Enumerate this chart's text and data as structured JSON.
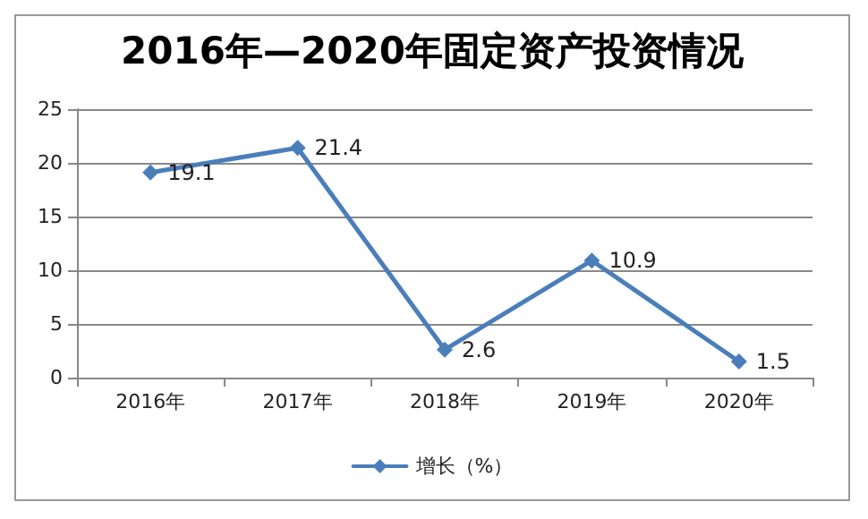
{
  "chart_data": {
    "type": "line",
    "title": "2016年—2020年固定资产投资情况",
    "categories": [
      "2016年",
      "2017年",
      "2018年",
      "2019年",
      "2020年"
    ],
    "series": [
      {
        "name": "增长（%）",
        "color": "#4a7ebb",
        "values": [
          19.1,
          21.4,
          2.6,
          10.9,
          1.5
        ]
      }
    ],
    "ylim": [
      0,
      25
    ],
    "yticks": [
      0,
      5,
      10,
      15,
      20,
      25
    ],
    "grid": "y",
    "legend": "bottom",
    "marker": "diamond",
    "line_style": "solid",
    "data_labels": true
  }
}
